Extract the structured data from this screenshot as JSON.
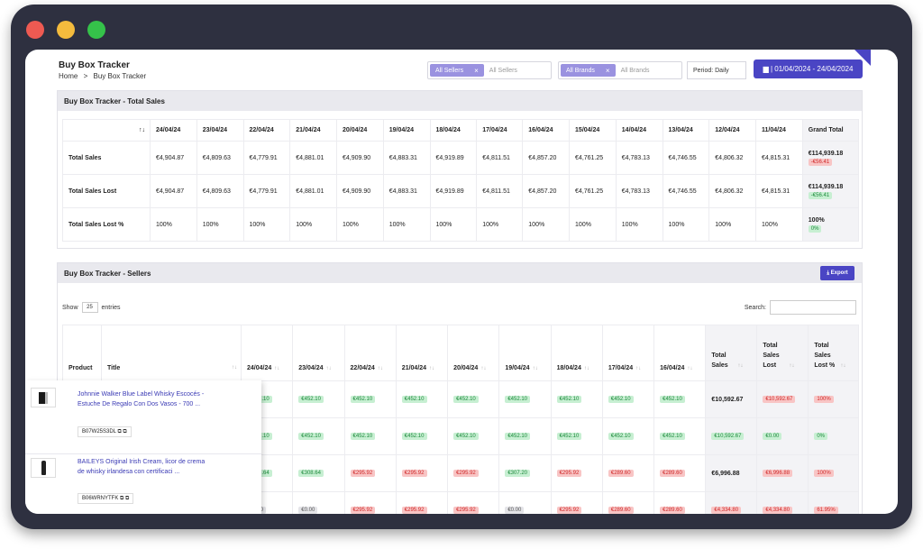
{
  "header": {
    "title": "Buy Box Tracker",
    "breadcrumb": [
      "Home",
      ">",
      "Buy Box Tracker"
    ],
    "sellers_chip": "All Sellers",
    "sellers_placeholder": "All Sellers",
    "brands_chip": "All Brands",
    "brands_placeholder": "All Brands",
    "chip_close": "×",
    "period": "Period: Daily",
    "date_range": "▆ | 01/04/2024 - 24/04/2024"
  },
  "total_sales": {
    "title": "Buy Box Tracker - Total Sales",
    "sort_icon": "↑↓",
    "dates": [
      "24/04/24",
      "23/04/24",
      "22/04/24",
      "21/04/24",
      "20/04/24",
      "19/04/24",
      "18/04/24",
      "17/04/24",
      "16/04/24",
      "15/04/24",
      "14/04/24",
      "13/04/24",
      "12/04/24",
      "11/04/24"
    ],
    "grand_total_label": "Grand Total",
    "rows": [
      {
        "label": "Total Sales",
        "values": [
          "€4,904.87",
          "€4,809.63",
          "€4,779.91",
          "€4,881.01",
          "€4,909.90",
          "€4,883.31",
          "€4,919.89",
          "€4,811.51",
          "€4,857.20",
          "€4,761.25",
          "€4,783.13",
          "€4,746.55",
          "€4,806.32",
          "€4,815.31"
        ],
        "total": "€114,939.18",
        "delta": "-€56.41",
        "delta_color": "red"
      },
      {
        "label": "Total Sales Lost",
        "values": [
          "€4,904.87",
          "€4,809.63",
          "€4,779.91",
          "€4,881.01",
          "€4,909.90",
          "€4,883.31",
          "€4,919.89",
          "€4,811.51",
          "€4,857.20",
          "€4,761.25",
          "€4,783.13",
          "€4,746.55",
          "€4,806.32",
          "€4,815.31"
        ],
        "total": "€114,939.18",
        "delta": "-€56.41",
        "delta_color": "green"
      },
      {
        "label": "Total Sales Lost %",
        "values": [
          "100%",
          "100%",
          "100%",
          "100%",
          "100%",
          "100%",
          "100%",
          "100%",
          "100%",
          "100%",
          "100%",
          "100%",
          "100%",
          "100%"
        ],
        "total": "100%",
        "delta": "0%",
        "delta_color": "green"
      }
    ]
  },
  "sellers": {
    "title": "Buy Box Tracker - Sellers",
    "export_label": "⤓ Export",
    "show_label": "Show",
    "entries_value": "25",
    "entries_label": "entries",
    "search_label": "Search:",
    "columns": {
      "product": "Product",
      "title": "Title",
      "dates": [
        "24/04/24",
        "23/04/24",
        "22/04/24",
        "21/04/24",
        "20/04/24",
        "19/04/24",
        "18/04/24",
        "17/04/24",
        "16/04/24"
      ],
      "total_sales": "Total Sales",
      "total_lost": "Total Sales Lost",
      "total_lost_pct": "Total Sales Lost %"
    },
    "rows": [
      {
        "cells": [
          [
            "€452.10",
            "green"
          ],
          [
            "€452.10",
            "green"
          ],
          [
            "€452.10",
            "green"
          ],
          [
            "€452.10",
            "green"
          ],
          [
            "€452.10",
            "green"
          ],
          [
            "€452.10",
            "green"
          ],
          [
            "€452.10",
            "green"
          ],
          [
            "€452.10",
            "green"
          ],
          [
            "€452.10",
            "green"
          ]
        ],
        "total": "€10,592.67",
        "lost": [
          "€10,592.67",
          "red"
        ],
        "pct": [
          "100%",
          "red"
        ]
      },
      {
        "cells": [
          [
            "€452.10",
            "green"
          ],
          [
            "€452.10",
            "green"
          ],
          [
            "€452.10",
            "green"
          ],
          [
            "€452.10",
            "green"
          ],
          [
            "€452.10",
            "green"
          ],
          [
            "€452.10",
            "green"
          ],
          [
            "€452.10",
            "green"
          ],
          [
            "€452.10",
            "green"
          ],
          [
            "€452.10",
            "green"
          ]
        ],
        "total": [
          "€10,592.67",
          "green"
        ],
        "lost": [
          "€0.00",
          "green"
        ],
        "pct": [
          "0%",
          "green"
        ]
      },
      {
        "cells": [
          [
            "€308.64",
            "green"
          ],
          [
            "€308.64",
            "green"
          ],
          [
            "€295.92",
            "red"
          ],
          [
            "€295.92",
            "red"
          ],
          [
            "€295.92",
            "red"
          ],
          [
            "€307.20",
            "green"
          ],
          [
            "€295.92",
            "red"
          ],
          [
            "€289.60",
            "red"
          ],
          [
            "€289.60",
            "red"
          ]
        ],
        "total": "€6,996.88",
        "lost": [
          "€6,996.88",
          "red"
        ],
        "pct": [
          "100%",
          "red"
        ]
      },
      {
        "cells": [
          [
            "€0.00",
            "gray"
          ],
          [
            "€0.00",
            "gray"
          ],
          [
            "€295.92",
            "red"
          ],
          [
            "€295.92",
            "red"
          ],
          [
            "€295.92",
            "red"
          ],
          [
            "€0.00",
            "gray"
          ],
          [
            "€295.92",
            "red"
          ],
          [
            "€289.60",
            "red"
          ],
          [
            "€289.60",
            "red"
          ]
        ],
        "total": [
          "€4,334.80",
          "red"
        ],
        "lost": [
          "€4,334.80",
          "red"
        ],
        "pct": [
          "61.95%",
          "red"
        ]
      }
    ],
    "products": [
      {
        "title": "Johnnie Walker Blue Label Whisky Escocés - Estuche De Regalo Con Dos Vasos - 700 ...",
        "asin": "B07W25S3DL ⧉ ⧉"
      },
      {
        "title": "BAILEYS Original Irish Cream, licor de crema de whisky irlandesa con certificaci ...",
        "asin": "B06WRNYTFK ⧉ ⧉"
      }
    ]
  }
}
